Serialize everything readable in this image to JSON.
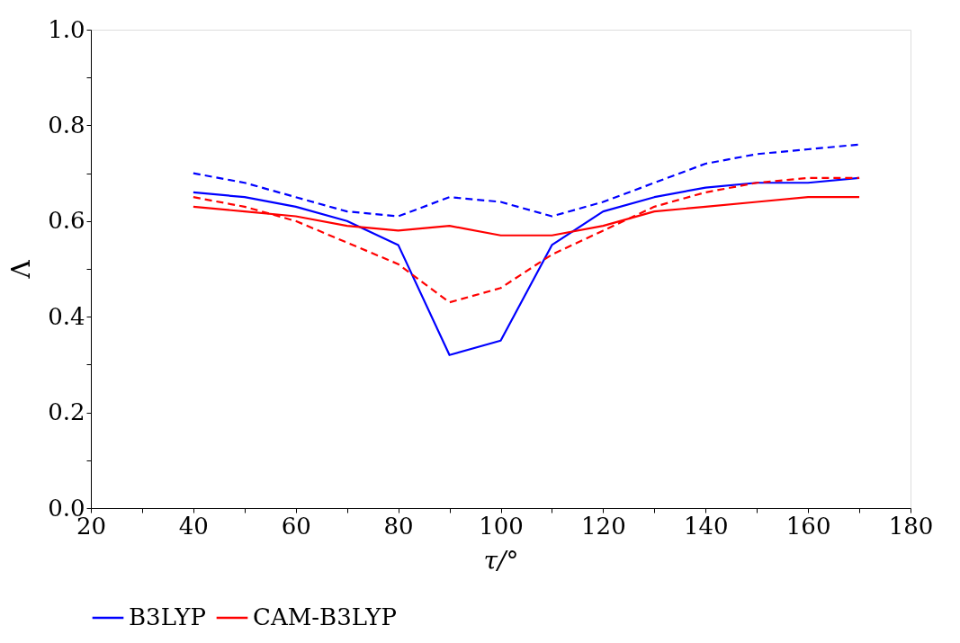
{
  "chart_data": {
    "type": "line",
    "xlabel": "τ/°",
    "ylabel": "Λ",
    "x": [
      40,
      50,
      60,
      70,
      80,
      90,
      100,
      110,
      120,
      130,
      140,
      150,
      160,
      170
    ],
    "series": [
      {
        "name": "B3LYP",
        "color": "#0000ff",
        "line_style": "solid",
        "values": [
          0.66,
          0.65,
          0.63,
          0.6,
          0.55,
          0.32,
          0.35,
          0.55,
          0.62,
          0.65,
          0.67,
          0.68,
          0.68,
          0.69
        ]
      },
      {
        "name": "CAM-B3LYP",
        "color": "#ff0000",
        "line_style": "solid",
        "values": [
          0.63,
          0.62,
          0.61,
          0.59,
          0.58,
          0.59,
          0.57,
          0.57,
          0.59,
          0.62,
          0.63,
          0.64,
          0.65,
          0.65
        ]
      },
      {
        "color": "#0000ff",
        "line_style": "dashed",
        "values": [
          0.7,
          0.68,
          0.65,
          0.62,
          0.61,
          0.65,
          0.64,
          0.61,
          0.64,
          0.68,
          0.72,
          0.74,
          0.75,
          0.76
        ]
      },
      {
        "color": "#ff0000",
        "line_style": "dashed",
        "values": [
          0.65,
          0.63,
          0.6,
          0.555,
          0.51,
          0.43,
          0.46,
          0.53,
          0.58,
          0.63,
          0.66,
          0.68,
          0.69,
          0.69
        ]
      }
    ],
    "xlim": [
      20,
      180
    ],
    "xticks": [
      20,
      {
        "value": 30,
        "label": null
      },
      40,
      {
        "value": 50,
        "label": null
      },
      60,
      {
        "value": 70,
        "label": null
      },
      80,
      {
        "value": 90,
        "label": null
      },
      100,
      {
        "value": 110,
        "label": null
      },
      120,
      {
        "value": 130,
        "label": null
      },
      140,
      {
        "value": 150,
        "label": null
      },
      160,
      {
        "value": 170,
        "label": null
      },
      180
    ],
    "ylim": [
      0,
      1
    ],
    "yticks": [
      {
        "value": 0,
        "label": "0.0"
      },
      {
        "value": 0.1,
        "label": null
      },
      {
        "value": 0.2,
        "label": "0.2"
      },
      {
        "value": 0.3,
        "label": null
      },
      {
        "value": 0.4,
        "label": "0.4"
      },
      {
        "value": 0.5,
        "label": null
      },
      {
        "value": 0.6,
        "label": "0.6"
      },
      {
        "value": 0.7,
        "label": null
      },
      {
        "value": 0.8,
        "label": "0.8"
      },
      {
        "value": 0.9,
        "label": null
      },
      {
        "value": 1,
        "label": "1.0"
      }
    ],
    "grid": false,
    "legend": "bottom",
    "marker": "none"
  }
}
